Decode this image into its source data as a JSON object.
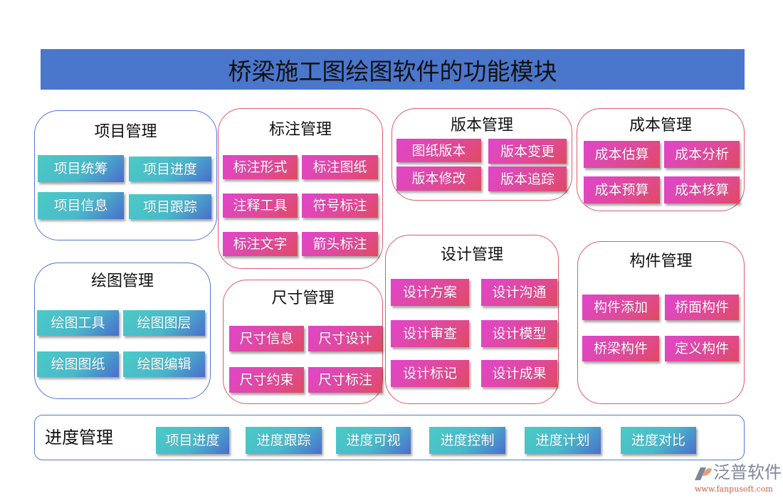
{
  "title": "桥梁施工图绘图软件的功能模块",
  "modules": [
    {
      "title": "项目管理",
      "items": [
        "项目统筹",
        "项目进度",
        "项目信息",
        "项目跟踪"
      ]
    },
    {
      "title": "标注管理",
      "items": [
        "标注形式",
        "标注图纸",
        "注释工具",
        "符号标注",
        "标注文字",
        "箭头标注"
      ]
    },
    {
      "title": "绘图管理",
      "items": [
        "绘图工具",
        "绘图图层",
        "绘图图纸",
        "绘图编辑"
      ]
    },
    {
      "title": "尺寸管理",
      "items": [
        "尺寸信息",
        "尺寸设计",
        "尺寸约束",
        "尺寸标注"
      ]
    },
    {
      "title": "版本管理",
      "items": [
        "图纸版本",
        "版本变更",
        "版本修改",
        "版本追踪"
      ]
    },
    {
      "title": "成本管理",
      "items": [
        "成本估算",
        "成本分析",
        "成本预算",
        "成本核算"
      ]
    },
    {
      "title": "设计管理",
      "items": [
        "设计方案",
        "设计沟通",
        "设计审查",
        "设计模型",
        "设计标记",
        "设计成果"
      ]
    },
    {
      "title": "构件管理",
      "items": [
        "构件添加",
        "桥面构件",
        "桥梁构件",
        "定义构件"
      ]
    },
    {
      "title": "进度管理",
      "items": [
        "项目进度",
        "进度跟踪",
        "进度可视",
        "进度控制",
        "进度计划",
        "进度对比"
      ]
    }
  ],
  "logo": {
    "name": "泛普软件",
    "url": "www.fanpusoft.com"
  },
  "colors": {
    "header": "#4a76cc",
    "teal_start": "#4acbc6",
    "teal_end": "#4a6dcc",
    "pink_start": "#e046cc",
    "pink_end": "#e04a60",
    "blue_border": "#4f78d2",
    "red_border": "#e05a6a"
  }
}
